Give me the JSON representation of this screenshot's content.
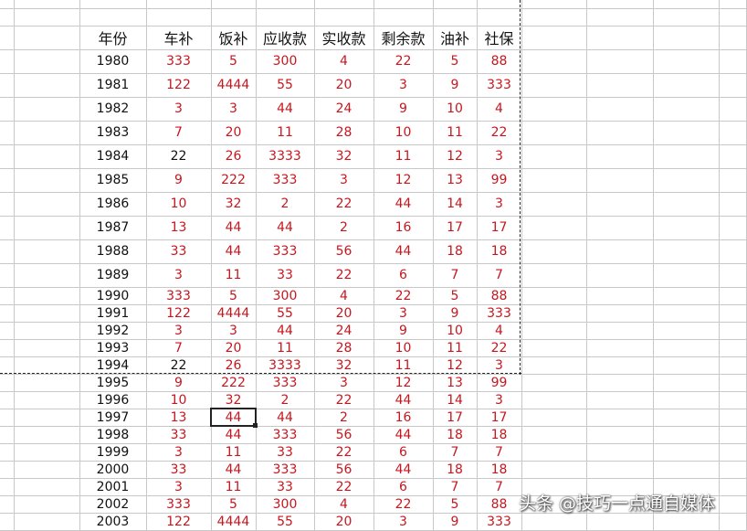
{
  "headers": [
    "年份",
    "车补",
    "饭补",
    "应收款",
    "实收款",
    "剩余款",
    "油补",
    "社保"
  ],
  "rows": [
    [
      "1980",
      "333",
      "5",
      "300",
      "4",
      "22",
      "5",
      "88"
    ],
    [
      "1981",
      "122",
      "4444",
      "55",
      "20",
      "3",
      "9",
      "333"
    ],
    [
      "1982",
      "3",
      "3",
      "44",
      "24",
      "9",
      "10",
      "4"
    ],
    [
      "1983",
      "7",
      "20",
      "11",
      "28",
      "10",
      "11",
      "22"
    ],
    [
      "1984",
      "22",
      "26",
      "3333",
      "32",
      "11",
      "12",
      "3"
    ],
    [
      "1985",
      "9",
      "222",
      "333",
      "3",
      "12",
      "13",
      "99"
    ],
    [
      "1986",
      "10",
      "32",
      "2",
      "22",
      "44",
      "14",
      "3"
    ],
    [
      "1987",
      "13",
      "44",
      "44",
      "2",
      "16",
      "17",
      "17"
    ],
    [
      "1988",
      "33",
      "44",
      "333",
      "56",
      "44",
      "18",
      "18"
    ],
    [
      "1989",
      "3",
      "11",
      "33",
      "22",
      "6",
      "7",
      "7"
    ],
    [
      "1990",
      "333",
      "5",
      "300",
      "4",
      "22",
      "5",
      "88"
    ],
    [
      "1991",
      "122",
      "4444",
      "55",
      "20",
      "3",
      "9",
      "333"
    ],
    [
      "1992",
      "3",
      "3",
      "44",
      "24",
      "9",
      "10",
      "4"
    ],
    [
      "1993",
      "7",
      "20",
      "11",
      "28",
      "10",
      "11",
      "22"
    ],
    [
      "1994",
      "22",
      "26",
      "3333",
      "32",
      "11",
      "12",
      "3"
    ],
    [
      "1995",
      "9",
      "222",
      "333",
      "3",
      "12",
      "13",
      "99"
    ],
    [
      "1996",
      "10",
      "32",
      "2",
      "22",
      "44",
      "14",
      "3"
    ],
    [
      "1997",
      "13",
      "44",
      "44",
      "2",
      "16",
      "17",
      "17"
    ],
    [
      "1998",
      "33",
      "44",
      "333",
      "56",
      "44",
      "18",
      "18"
    ],
    [
      "1999",
      "3",
      "11",
      "33",
      "22",
      "6",
      "7",
      "7"
    ],
    [
      "2000",
      "33",
      "44",
      "333",
      "56",
      "44",
      "18",
      "18"
    ],
    [
      "2001",
      "3",
      "11",
      "33",
      "22",
      "6",
      "7",
      "7"
    ],
    [
      "2002",
      "333",
      "5",
      "300",
      "4",
      "22",
      "5",
      "88"
    ],
    [
      "2003",
      "122",
      "4444",
      "55",
      "20",
      "3",
      "9",
      "333"
    ]
  ],
  "black_values": [
    [
      "1984",
      "车补"
    ],
    [
      "1994",
      "车补"
    ]
  ],
  "selected_cell": {
    "year": "1997",
    "column": "饭补"
  },
  "colors": {
    "value_red": "#c8161e",
    "text_black": "#111111",
    "gridline": "#c8c8c8"
  },
  "watermark": "头条 @技巧一点通自媒体"
}
